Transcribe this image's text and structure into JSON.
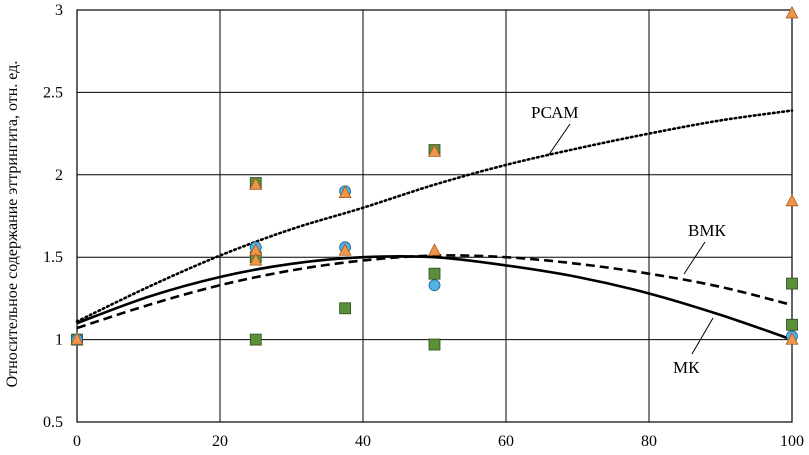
{
  "chart_data": {
    "type": "scatter",
    "title": "",
    "xlabel": "",
    "ylabel": "Относительное содержание эттрингита, отн. ед.",
    "xlim": [
      0,
      100
    ],
    "ylim": [
      0.5,
      3
    ],
    "x_ticks": [
      "0",
      "20",
      "40",
      "60",
      "80",
      "100"
    ],
    "y_ticks": [
      "0.5",
      "1",
      "1.5",
      "2",
      "2.5",
      "3"
    ],
    "grid": true,
    "series": [
      {
        "marker": "square",
        "color": "#5b8f3a",
        "points": [
          [
            0,
            1.0
          ],
          [
            25,
            1.95
          ],
          [
            25,
            1.5
          ],
          [
            25,
            1.0
          ],
          [
            37.5,
            1.19
          ],
          [
            50,
            2.15
          ],
          [
            50,
            1.4
          ],
          [
            50,
            0.97
          ],
          [
            100,
            1.34
          ],
          [
            100,
            1.09
          ]
        ]
      },
      {
        "marker": "circle",
        "color": "#4fb3e8",
        "points": [
          [
            0,
            1.0
          ],
          [
            25,
            1.56
          ],
          [
            37.5,
            1.9
          ],
          [
            37.5,
            1.56
          ],
          [
            50,
            1.33
          ],
          [
            100,
            1.02
          ]
        ]
      },
      {
        "marker": "triangle",
        "color": "#f0964a",
        "points": [
          [
            0,
            1.0
          ],
          [
            25,
            1.94
          ],
          [
            25,
            1.54
          ],
          [
            25,
            1.48
          ],
          [
            37.5,
            1.89
          ],
          [
            37.5,
            1.54
          ],
          [
            50,
            2.14
          ],
          [
            50,
            1.54
          ],
          [
            100,
            2.98
          ],
          [
            100,
            1.84
          ],
          [
            100,
            1.0
          ]
        ]
      }
    ],
    "curves": [
      {
        "name": "РСАМ",
        "style": "dotted",
        "x": [
          0,
          10,
          20,
          30,
          40,
          50,
          60,
          70,
          80,
          90,
          100
        ],
        "y": [
          1.11,
          1.32,
          1.51,
          1.67,
          1.8,
          1.94,
          2.06,
          2.16,
          2.25,
          2.33,
          2.39
        ]
      },
      {
        "name": "ВМК",
        "style": "dashed",
        "x": [
          0,
          10,
          20,
          30,
          40,
          50,
          60,
          70,
          80,
          90,
          100
        ],
        "y": [
          1.07,
          1.21,
          1.33,
          1.42,
          1.48,
          1.51,
          1.5,
          1.46,
          1.4,
          1.32,
          1.21
        ]
      },
      {
        "name": "МК",
        "style": "solid",
        "x": [
          0,
          10,
          20,
          30,
          40,
          50,
          60,
          70,
          80,
          90,
          100
        ],
        "y": [
          1.1,
          1.26,
          1.38,
          1.46,
          1.5,
          1.5,
          1.45,
          1.38,
          1.28,
          1.15,
          1.0
        ]
      }
    ]
  }
}
